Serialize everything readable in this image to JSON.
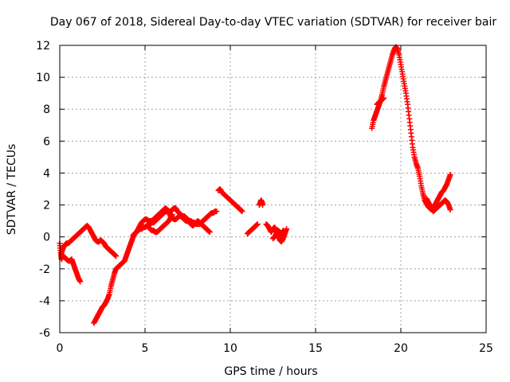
{
  "chart_data": {
    "type": "scatter",
    "title": "Day 067 of 2018, Sidereal Day-to-day VTEC variation (SDTVAR) for receiver bair",
    "xlabel": "GPS time / hours",
    "ylabel": "SDTVAR / TECUs",
    "xlim": [
      0,
      25
    ],
    "ylim": [
      -6,
      12
    ],
    "xticks": [
      0,
      5,
      10,
      15,
      20,
      25
    ],
    "yticks": [
      -6,
      -4,
      -2,
      0,
      2,
      4,
      6,
      8,
      10,
      12
    ],
    "grid": true,
    "marker": "plus",
    "colors": {
      "series": "#ff0000",
      "axis": "#000000",
      "grid": "#a0a0a0"
    },
    "series": [
      {
        "name": "SDTVAR",
        "segments": [
          {
            "x": [
              0.0,
              0.05,
              0.1,
              0.2,
              0.3,
              0.4,
              0.5,
              0.6,
              0.7,
              0.8,
              0.9,
              1.0,
              1.1,
              1.2
            ],
            "y": [
              -0.4,
              -1.0,
              -1.4,
              -1.2,
              -1.3,
              -1.4,
              -1.5,
              -1.5,
              -1.4,
              -1.7,
              -2.0,
              -2.3,
              -2.6,
              -2.8
            ]
          },
          {
            "x": [
              0.1,
              0.2,
              0.3,
              0.4,
              0.5,
              0.6,
              0.7,
              0.8,
              0.9,
              1.0,
              1.1,
              1.2,
              1.3,
              1.4,
              1.5,
              1.6,
              1.7,
              1.8,
              1.9,
              2.0,
              2.1,
              2.2,
              2.3,
              2.4,
              2.5,
              2.6,
              2.7,
              2.8,
              2.9,
              3.0,
              3.1,
              3.2,
              3.3
            ],
            "y": [
              -1.0,
              -0.7,
              -0.5,
              -0.4,
              -0.4,
              -0.3,
              -0.2,
              -0.1,
              0.0,
              0.1,
              0.2,
              0.3,
              0.4,
              0.5,
              0.6,
              0.7,
              0.6,
              0.4,
              0.2,
              0.0,
              -0.2,
              -0.3,
              -0.3,
              -0.2,
              -0.3,
              -0.4,
              -0.6,
              -0.7,
              -0.8,
              -0.9,
              -1.0,
              -1.1,
              -1.2
            ]
          },
          {
            "x": [
              2.0,
              2.1,
              2.2,
              2.3,
              2.4,
              2.5,
              2.6,
              2.7,
              2.8,
              2.9,
              3.0,
              3.1,
              3.2,
              3.3,
              3.4,
              3.5,
              3.6,
              3.7,
              3.8,
              3.9,
              4.0,
              4.1,
              4.2,
              4.3,
              4.4,
              4.5,
              4.6,
              4.7,
              4.8,
              4.9,
              5.0,
              5.1,
              5.2,
              5.3,
              5.4,
              5.5,
              5.6,
              5.7,
              5.8,
              5.9,
              6.0,
              6.1,
              6.2,
              6.3,
              6.4,
              6.5,
              6.6,
              6.7,
              6.8,
              6.9,
              7.0,
              7.1,
              7.2,
              7.3,
              7.4,
              7.5,
              7.6,
              7.7,
              7.8,
              7.9,
              8.0,
              8.1,
              8.2,
              8.3,
              8.4,
              8.5,
              8.6,
              8.7,
              8.8,
              8.9,
              9.0,
              9.1,
              9.2
            ],
            "y": [
              -5.4,
              -5.2,
              -5.0,
              -4.8,
              -4.6,
              -4.4,
              -4.3,
              -4.1,
              -3.9,
              -3.6,
              -3.1,
              -2.7,
              -2.3,
              -2.0,
              -1.9,
              -1.8,
              -1.7,
              -1.6,
              -1.5,
              -1.2,
              -0.9,
              -0.6,
              -0.3,
              0.0,
              0.2,
              0.3,
              0.5,
              0.7,
              0.9,
              1.0,
              1.1,
              1.1,
              1.0,
              1.0,
              1.0,
              1.1,
              1.2,
              1.3,
              1.4,
              1.5,
              1.6,
              1.7,
              1.8,
              1.7,
              1.6,
              1.6,
              1.7,
              1.8,
              1.8,
              1.6,
              1.5,
              1.4,
              1.3,
              1.3,
              1.2,
              1.1,
              1.0,
              1.0,
              0.9,
              0.9,
              0.8,
              0.8,
              0.8,
              0.9,
              1.0,
              1.1,
              1.2,
              1.3,
              1.4,
              1.5,
              1.5,
              1.6,
              1.6
            ]
          },
          {
            "x": [
              4.3,
              4.4,
              4.5,
              4.6,
              4.7,
              4.8,
              4.9,
              5.0,
              5.1,
              5.2,
              5.3,
              5.4,
              5.5,
              5.6,
              5.7,
              5.8,
              5.9,
              6.0,
              6.1,
              6.2,
              6.3,
              6.4,
              6.5,
              6.6,
              6.7,
              6.8,
              6.9,
              7.0,
              7.1,
              7.2,
              7.3,
              7.4,
              7.5,
              7.6,
              7.7,
              7.8,
              7.9,
              8.0,
              8.1,
              8.2,
              8.3,
              8.4,
              8.5,
              8.6,
              8.7,
              8.8
            ],
            "y": [
              0.1,
              0.2,
              0.3,
              0.4,
              0.5,
              0.5,
              0.6,
              0.6,
              0.7,
              0.7,
              0.8,
              0.9,
              0.9,
              1.0,
              1.1,
              1.2,
              1.3,
              1.4,
              1.5,
              1.6,
              1.6,
              1.5,
              1.3,
              1.2,
              1.1,
              1.1,
              1.2,
              1.3,
              1.3,
              1.2,
              1.1,
              1.0,
              1.0,
              0.9,
              0.8,
              0.7,
              0.8,
              0.9,
              1.0,
              0.9,
              0.8,
              0.7,
              0.6,
              0.5,
              0.4,
              0.3
            ]
          },
          {
            "x": [
              5.2,
              5.3,
              5.4,
              5.5,
              5.6,
              5.7,
              5.8,
              5.9,
              6.0,
              6.1,
              6.2,
              6.3,
              6.4,
              6.5,
              6.6
            ],
            "y": [
              0.6,
              0.5,
              0.4,
              0.4,
              0.3,
              0.3,
              0.4,
              0.5,
              0.6,
              0.7,
              0.8,
              0.9,
              1.0,
              1.2,
              1.4
            ]
          },
          {
            "x": [
              9.3,
              9.4,
              9.5,
              9.6,
              9.7,
              9.8,
              9.9,
              10.0,
              10.1,
              10.2,
              10.3,
              10.4,
              10.5,
              10.6,
              10.7
            ],
            "y": [
              2.9,
              3.0,
              2.8,
              2.7,
              2.6,
              2.5,
              2.4,
              2.3,
              2.2,
              2.1,
              2.0,
              1.9,
              1.8,
              1.7,
              1.6
            ]
          },
          {
            "x": [
              11.0,
              11.1,
              11.2,
              11.3,
              11.4,
              11.5,
              11.6
            ],
            "y": [
              0.2,
              0.3,
              0.4,
              0.5,
              0.6,
              0.7,
              0.8
            ]
          },
          {
            "x": [
              11.7,
              11.75,
              11.8,
              11.85,
              11.9
            ],
            "y": [
              2.0,
              2.1,
              2.3,
              2.2,
              2.0
            ]
          },
          {
            "x": [
              12.1,
              12.2,
              12.3,
              12.4,
              12.5,
              12.6,
              12.7,
              12.8,
              12.9,
              13.0,
              13.1,
              13.2,
              13.3
            ],
            "y": [
              0.8,
              0.7,
              0.5,
              0.3,
              0.5,
              0.6,
              0.4,
              0.1,
              -0.2,
              -0.3,
              -0.1,
              0.2,
              0.5
            ]
          },
          {
            "x": [
              12.5,
              12.6,
              12.7,
              12.8,
              12.9,
              13.0,
              13.1
            ],
            "y": [
              -0.1,
              0.0,
              0.2,
              0.4,
              0.3,
              0.2,
              0.4
            ]
          },
          {
            "x": [
              18.3,
              18.4,
              18.5,
              18.6,
              18.7,
              18.8,
              18.9,
              19.0,
              19.1,
              19.2,
              19.3,
              19.4,
              19.5,
              19.6,
              19.7,
              19.8,
              19.9,
              20.0,
              20.1,
              20.2,
              20.3,
              20.4,
              20.5,
              20.6,
              20.7,
              20.8,
              20.9,
              21.0,
              21.1,
              21.2,
              21.3,
              21.4,
              21.5,
              21.6,
              21.7,
              21.8,
              21.9,
              22.0,
              22.1,
              22.2,
              22.3,
              22.4,
              22.5,
              22.6,
              22.7,
              22.8,
              22.9
            ],
            "y": [
              6.8,
              7.3,
              7.6,
              7.9,
              8.2,
              8.5,
              8.9,
              9.4,
              9.8,
              10.2,
              10.6,
              11.0,
              11.4,
              11.7,
              11.9,
              11.8,
              11.4,
              10.8,
              10.2,
              9.6,
              9.0,
              8.3,
              7.4,
              6.5,
              5.6,
              5.0,
              4.6,
              4.3,
              3.8,
              3.2,
              2.7,
              2.3,
              2.1,
              1.9,
              1.8,
              1.7,
              1.8,
              2.0,
              2.2,
              2.4,
              2.6,
              2.8,
              2.9,
              3.1,
              3.3,
              3.6,
              3.9
            ]
          },
          {
            "x": [
              18.6,
              18.7,
              18.8,
              18.9,
              19.0
            ],
            "y": [
              8.3,
              8.4,
              8.5,
              8.6,
              8.7
            ]
          },
          {
            "x": [
              21.5,
              21.6,
              21.7,
              21.8,
              21.9,
              22.0,
              22.1,
              22.2,
              22.3,
              22.4,
              22.5,
              22.6,
              22.7,
              22.8,
              22.9
            ],
            "y": [
              2.4,
              2.2,
              2.0,
              1.8,
              1.6,
              1.7,
              1.8,
              1.9,
              2.0,
              2.1,
              2.2,
              2.3,
              2.2,
              2.0,
              1.7
            ]
          }
        ]
      }
    ]
  }
}
